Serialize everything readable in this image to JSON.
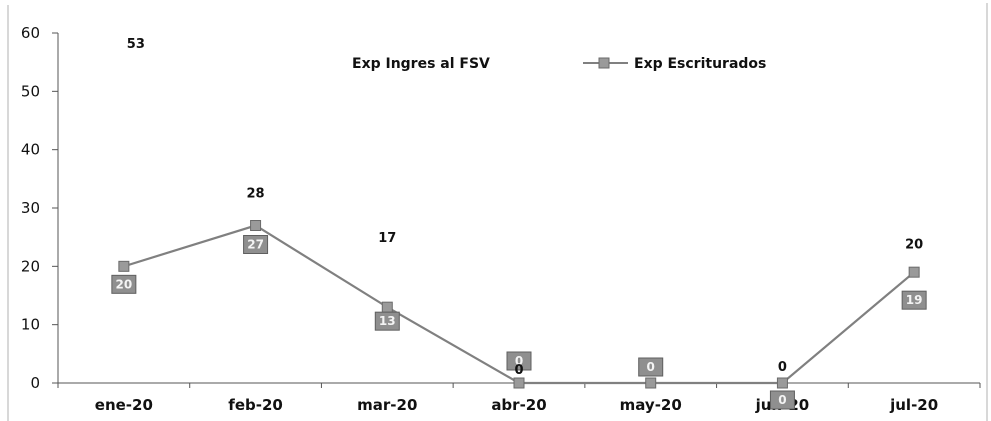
{
  "chart_data": {
    "type": "line",
    "categories": [
      "ene-20",
      "feb-20",
      "mar-20",
      "abr-20",
      "may-20",
      "jun-20",
      "jul-20"
    ],
    "ylim": [
      0,
      60
    ],
    "yticks": [
      0,
      10,
      20,
      30,
      40,
      50,
      60
    ],
    "grid": false,
    "legend_position": "top-center",
    "series": [
      {
        "name": "Exp Ingres al FSV",
        "values": [
          53,
          28,
          17,
          0,
          null,
          0,
          20
        ],
        "color": "#111111",
        "display": "data labels only"
      },
      {
        "name": "Exp Escriturados",
        "values": [
          20,
          27,
          13,
          0,
          0,
          0,
          19
        ],
        "color": "#808080",
        "marker": "square"
      }
    ]
  }
}
